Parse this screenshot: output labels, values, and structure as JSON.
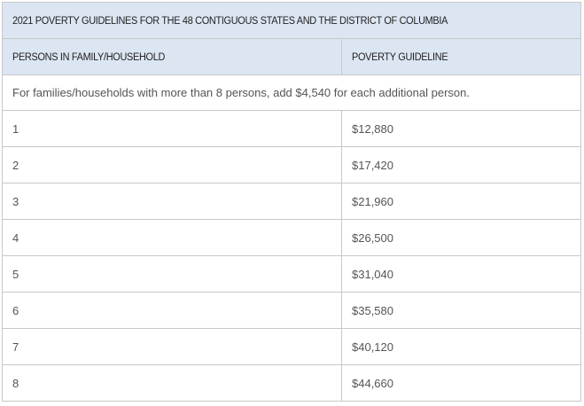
{
  "table": {
    "title": "2021 POVERTY GUIDELINES FOR THE 48 CONTIGUOUS STATES AND THE DISTRICT OF COLUMBIA",
    "headers": [
      "PERSONS IN FAMILY/HOUSEHOLD",
      "POVERTY GUIDELINE"
    ],
    "note": "For families/households with more than 8 persons, add $4,540 for each additional person.",
    "rows": [
      {
        "persons": "1",
        "guideline": "$12,880"
      },
      {
        "persons": "2",
        "guideline": "$17,420"
      },
      {
        "persons": "3",
        "guideline": "$21,960"
      },
      {
        "persons": "4",
        "guideline": "$26,500"
      },
      {
        "persons": "5",
        "guideline": "$31,040"
      },
      {
        "persons": "6",
        "guideline": "$35,580"
      },
      {
        "persons": "7",
        "guideline": "$40,120"
      },
      {
        "persons": "8",
        "guideline": "$44,660"
      }
    ]
  },
  "colors": {
    "header_bg": "#dce6f3",
    "border": "#c8c8c8",
    "header_text": "#222222",
    "body_text": "#555555"
  }
}
